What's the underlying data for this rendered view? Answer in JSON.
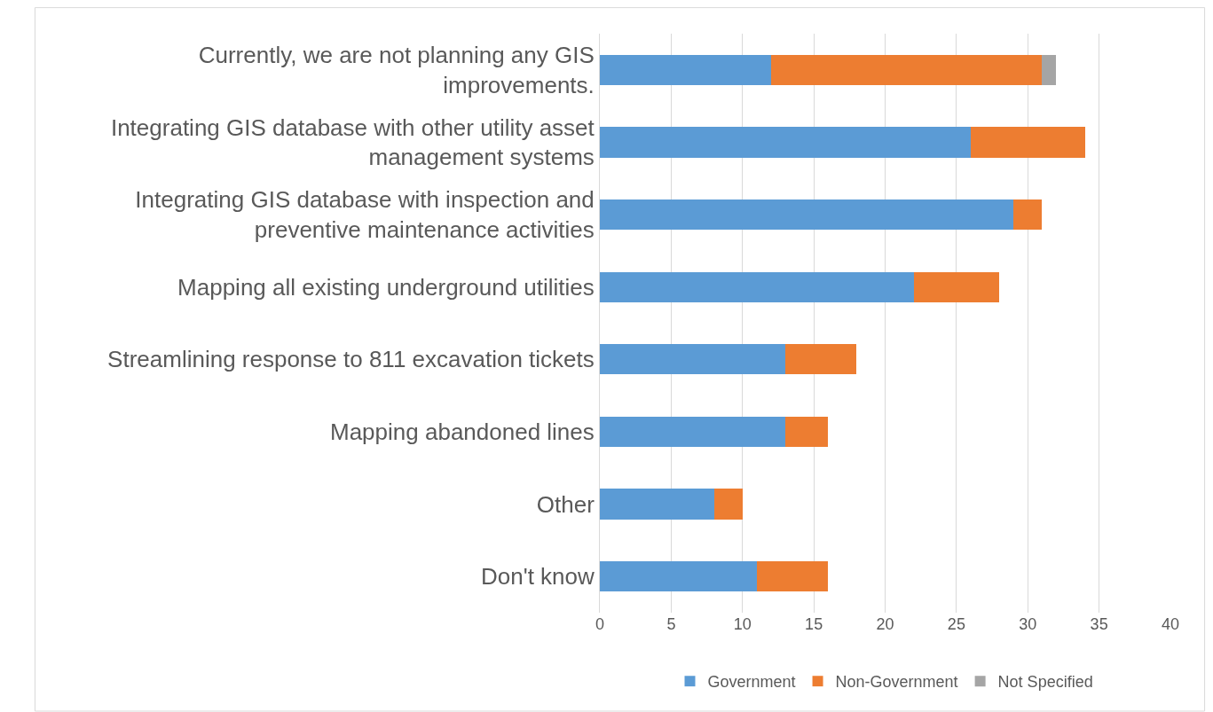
{
  "chart_data": {
    "type": "bar",
    "orientation": "horizontal",
    "stacked": true,
    "categories": [
      "Currently, we are not planning any GIS improvements.",
      "Integrating GIS database with other utility asset management systems",
      "Integrating GIS database with inspection and preventive maintenance activities",
      "Mapping all existing underground utilities",
      "Streamlining response to 811 excavation tickets",
      "Mapping abandoned lines",
      "Other",
      "Don't know"
    ],
    "series": [
      {
        "name": "Government",
        "color": "#5b9bd5",
        "values": [
          12,
          26,
          29,
          22,
          13,
          13,
          8,
          11
        ]
      },
      {
        "name": "Non-Government",
        "color": "#ed7d31",
        "values": [
          19,
          8,
          2,
          6,
          5,
          3,
          2,
          5
        ]
      },
      {
        "name": "Not Specified",
        "color": "#a5a5a5",
        "values": [
          1,
          0,
          0,
          0,
          0,
          0,
          0,
          0
        ]
      }
    ],
    "xlim": [
      0,
      40
    ],
    "xticks": [
      0,
      5,
      10,
      15,
      20,
      25,
      30,
      35,
      40
    ],
    "grid": "x",
    "legend": "bottom"
  }
}
